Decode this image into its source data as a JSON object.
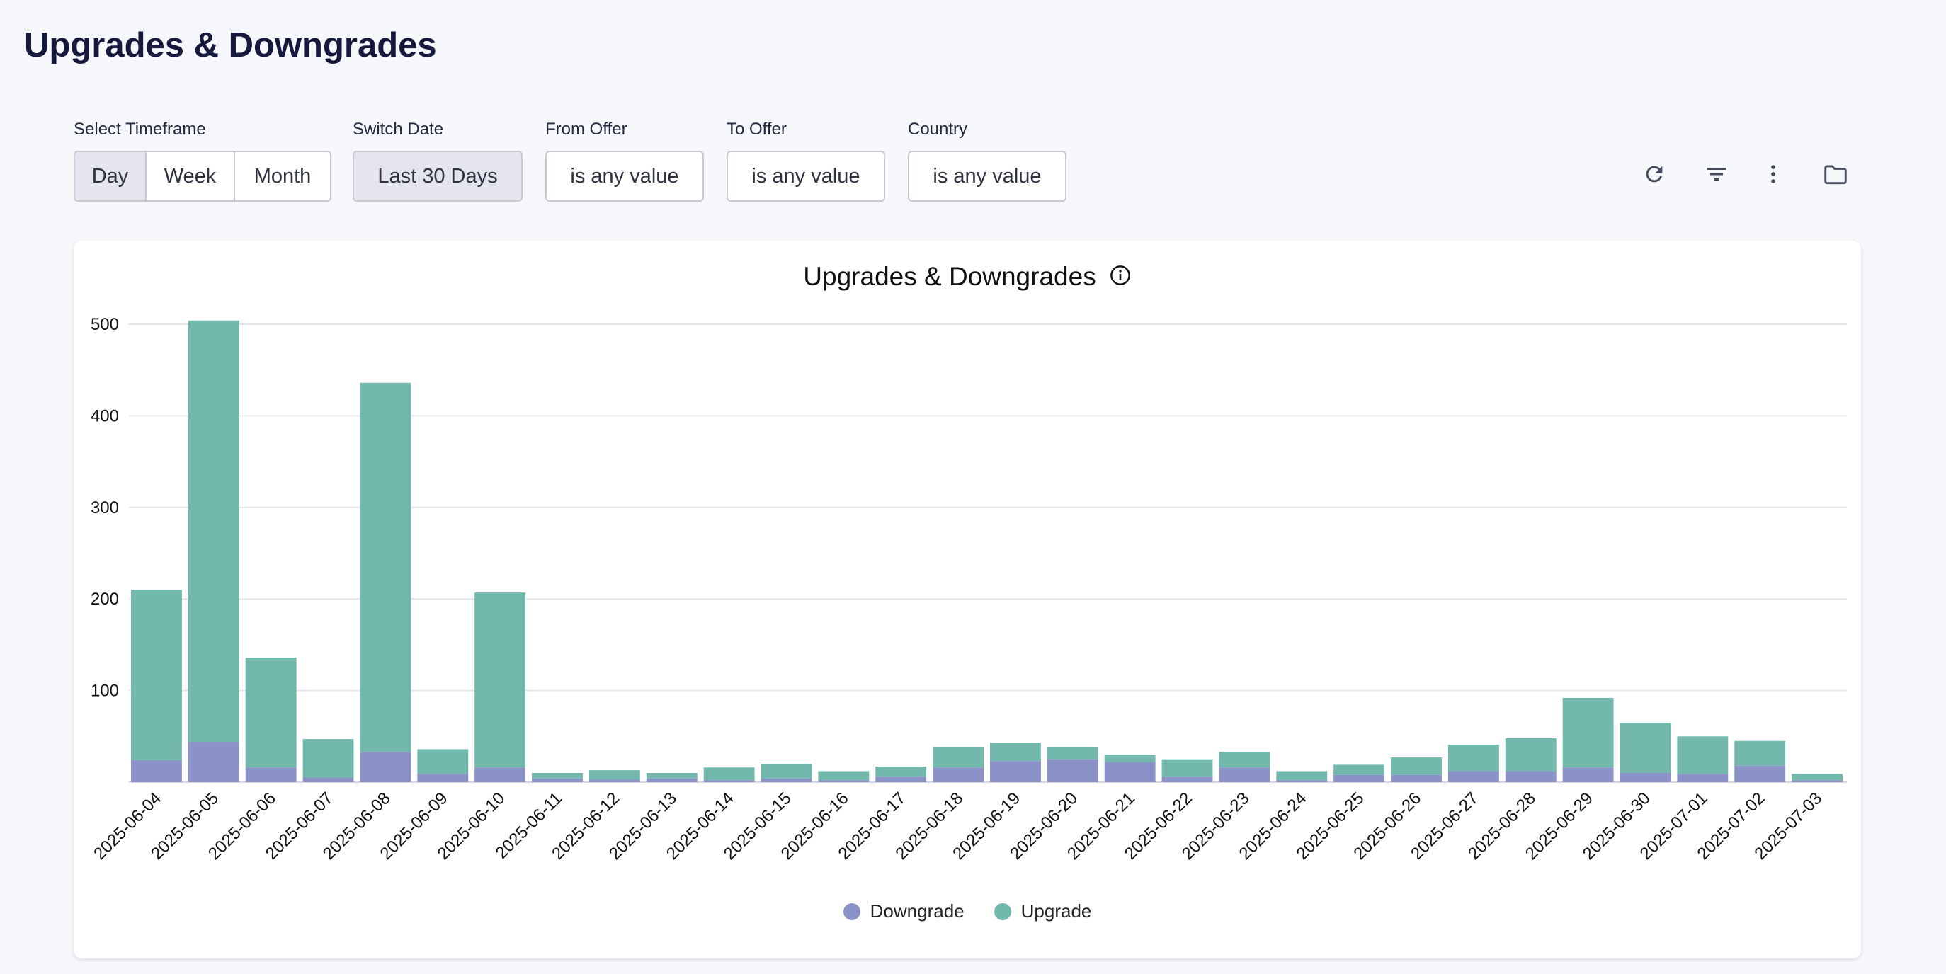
{
  "page": {
    "title": "Upgrades & Downgrades"
  },
  "filters": {
    "timeframe": {
      "label": "Select Timeframe",
      "options": [
        "Day",
        "Week",
        "Month"
      ],
      "selected": "Day"
    },
    "switch_date": {
      "label": "Switch Date",
      "value": "Last 30 Days"
    },
    "from_offer": {
      "label": "From Offer",
      "value": "is any value"
    },
    "to_offer": {
      "label": "To Offer",
      "value": "is any value"
    },
    "country": {
      "label": "Country",
      "value": "is any value"
    }
  },
  "toolbar": {
    "icons": [
      "refresh-icon",
      "filter-icon",
      "more-vert-icon",
      "folder-icon"
    ]
  },
  "colors": {
    "downgrade": "#8a92c8",
    "upgrade": "#73b8ad",
    "grid": "#e4e6ec",
    "selected_bg": "#e4e5ef"
  },
  "chart_data": {
    "type": "bar",
    "stacked": true,
    "title": "Upgrades & Downgrades",
    "title_icon": "info-icon",
    "xlabel": "",
    "ylabel": "",
    "ylim": [
      0,
      500
    ],
    "yticks": [
      100,
      200,
      300,
      400,
      500
    ],
    "grid": true,
    "legend_position": "bottom-center",
    "categories": [
      "2025-06-04",
      "2025-06-05",
      "2025-06-06",
      "2025-06-07",
      "2025-06-08",
      "2025-06-09",
      "2025-06-10",
      "2025-06-11",
      "2025-06-12",
      "2025-06-13",
      "2025-06-14",
      "2025-06-15",
      "2025-06-16",
      "2025-06-17",
      "2025-06-18",
      "2025-06-19",
      "2025-06-20",
      "2025-06-21",
      "2025-06-22",
      "2025-06-23",
      "2025-06-24",
      "2025-06-25",
      "2025-06-26",
      "2025-06-27",
      "2025-06-28",
      "2025-06-29",
      "2025-06-30",
      "2025-07-01",
      "2025-07-02",
      "2025-07-03"
    ],
    "series": [
      {
        "name": "Downgrade",
        "color": "#8a92c8",
        "values": [
          24,
          44,
          16,
          5,
          33,
          9,
          16,
          4,
          3,
          4,
          2,
          4,
          2,
          6,
          16,
          23,
          25,
          22,
          6,
          16,
          2,
          8,
          8,
          12,
          12,
          16,
          10,
          9,
          18,
          2
        ]
      },
      {
        "name": "Upgrade",
        "color": "#73b8ad",
        "values": [
          186,
          460,
          120,
          42,
          403,
          27,
          191,
          6,
          10,
          6,
          14,
          16,
          10,
          11,
          22,
          20,
          13,
          8,
          19,
          17,
          10,
          11,
          19,
          29,
          36,
          76,
          55,
          41,
          27,
          7
        ]
      }
    ]
  }
}
